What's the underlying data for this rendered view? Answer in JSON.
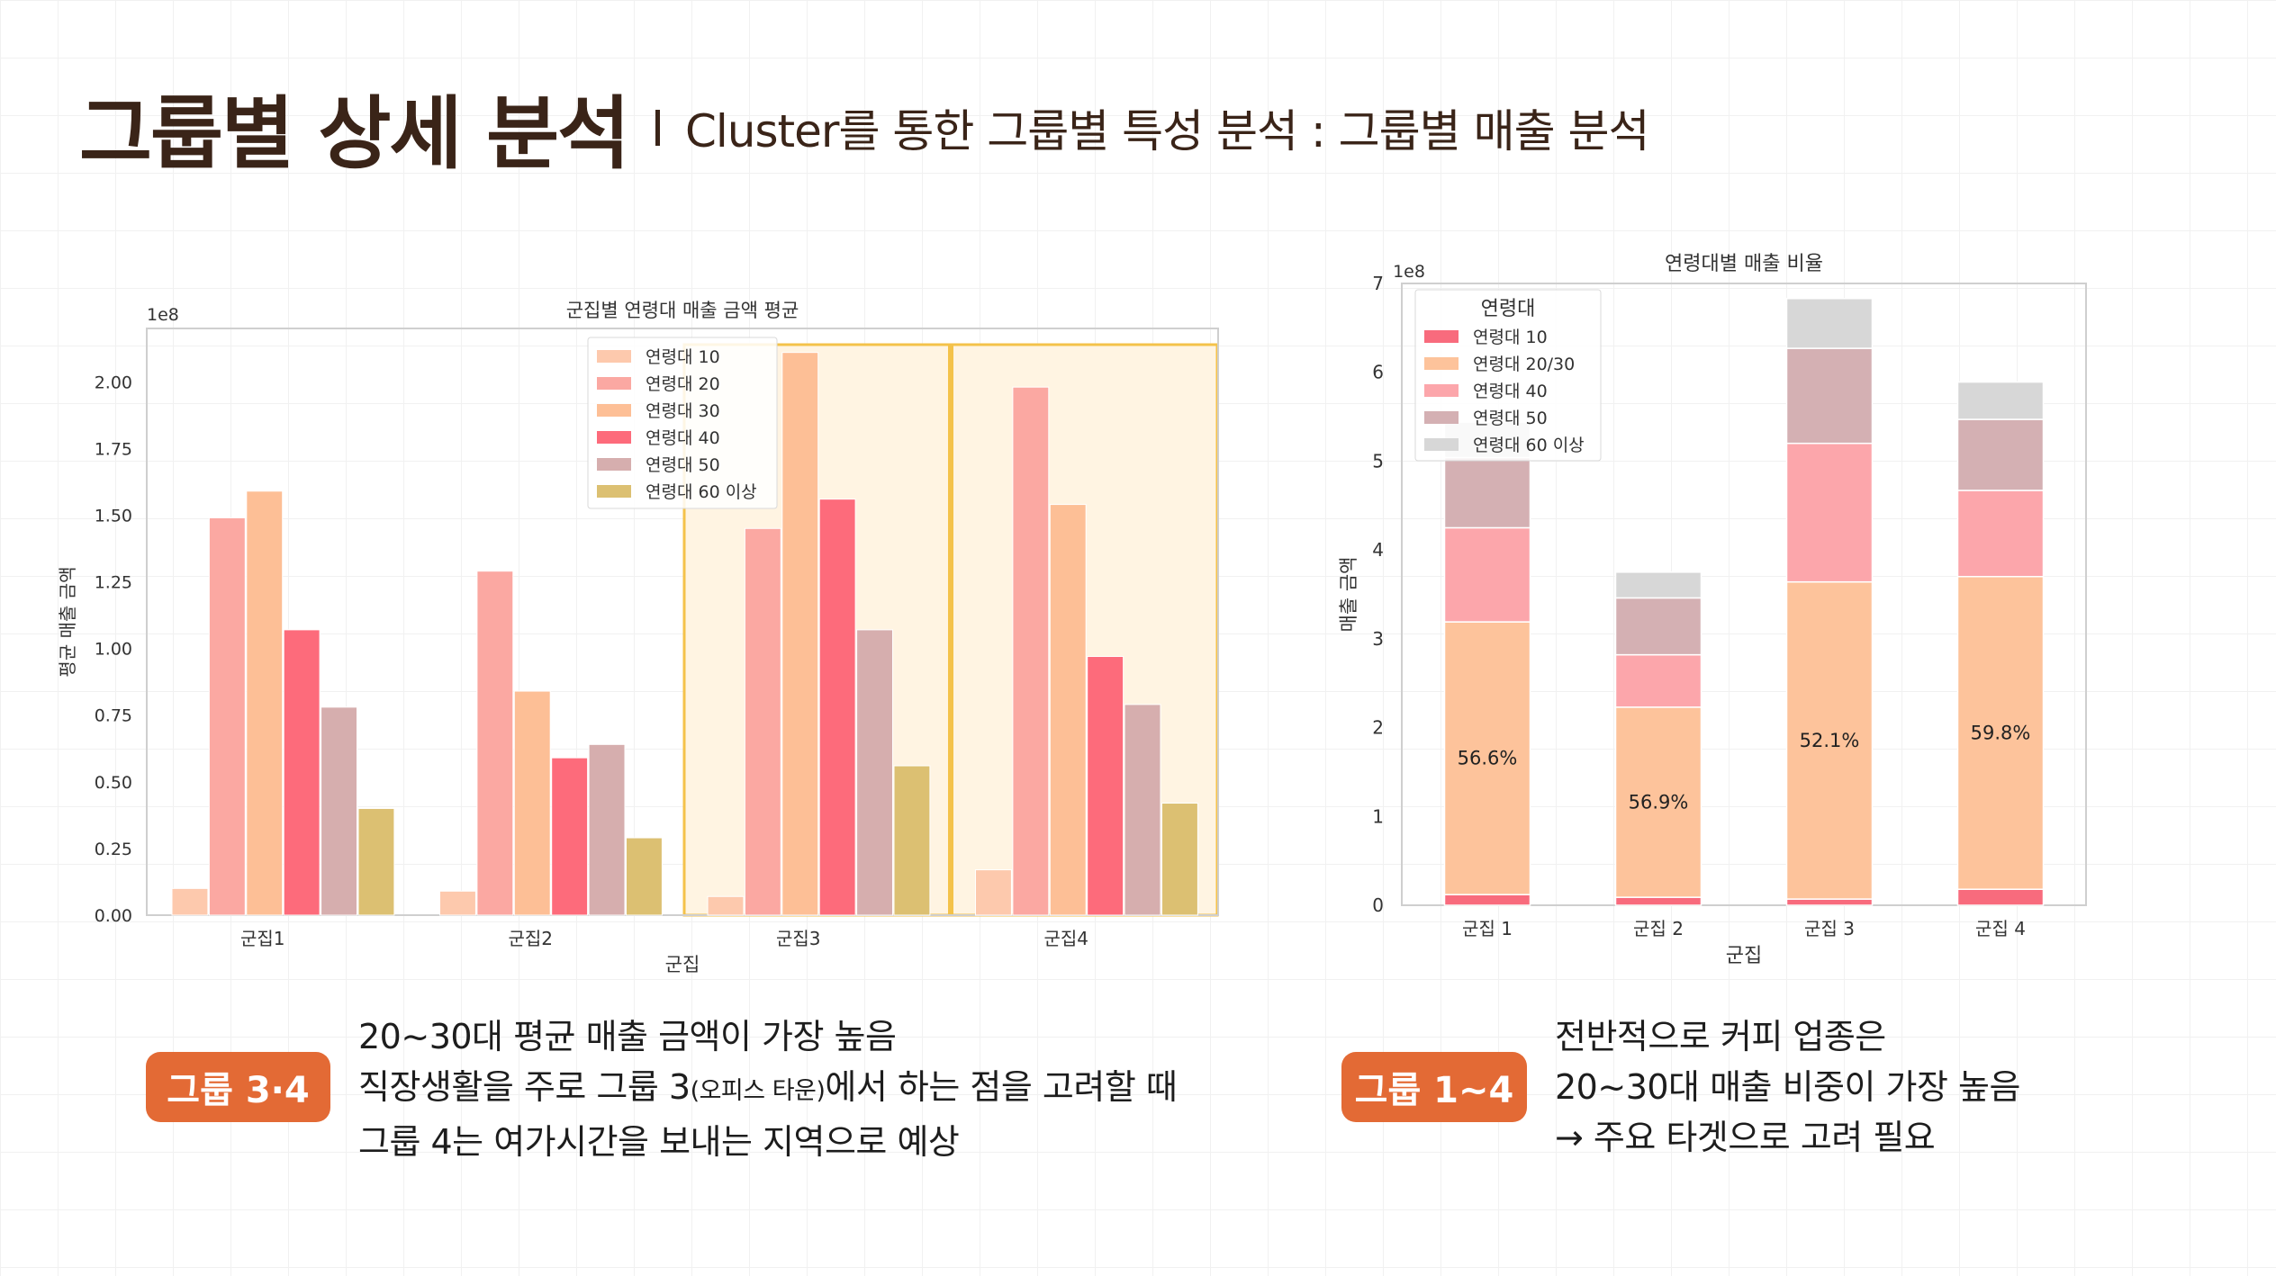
{
  "header": {
    "title": "그룹별 상세 분석",
    "subtitle": "Cluster를 통한 그룹별 특성 분석 : 그룹별 매출 분석"
  },
  "left_panel": {
    "badge": "그룹 3·4",
    "lines": [
      "20~30대 평균 매출 금액이 가장 높음",
      {
        "pre": "직장생활을 주로 그룹 3",
        "small": "(오피스 타운)",
        "post": "에서 하는 점을 고려할 때"
      },
      "그룹 4는 여가시간을 보내는 지역으로 예상"
    ]
  },
  "right_panel": {
    "badge": "그룹 1~4",
    "lines": [
      "전반적으로 커피 업종은",
      "20~30대 매출 비중이 가장 높음",
      "→ 주요 타겟으로 고려 필요"
    ]
  },
  "chart_data": [
    {
      "type": "bar",
      "title": "군집별 연령대 매출 금액 평균",
      "xlabel": "군집",
      "ylabel": "평균 매출 금액",
      "scale_label": "1e8",
      "categories": [
        "군집1",
        "군집2",
        "군집3",
        "군집4"
      ],
      "ylim": [
        0,
        2.2
      ],
      "yticks": [
        "0.00",
        "0.25",
        "0.50",
        "0.75",
        "1.00",
        "1.25",
        "1.50",
        "1.75",
        "2.00"
      ],
      "legend_position": "top-center",
      "highlighted_categories": [
        "군집3",
        "군집4"
      ],
      "highlight_color": "#f4c24a",
      "series": [
        {
          "name": "연령대 10",
          "color": "#fdc9ad",
          "values": [
            0.1,
            0.09,
            0.07,
            0.17
          ]
        },
        {
          "name": "연령대 20",
          "color": "#fba8a2",
          "values": [
            1.49,
            1.29,
            1.45,
            1.98
          ]
        },
        {
          "name": "연령대 30",
          "color": "#fdbf96",
          "values": [
            1.59,
            0.84,
            2.11,
            1.54
          ]
        },
        {
          "name": "연령대 40",
          "color": "#fd6b7b",
          "values": [
            1.07,
            0.59,
            1.56,
            0.97
          ]
        },
        {
          "name": "연령대 50",
          "color": "#d6aeae",
          "values": [
            0.78,
            0.64,
            1.07,
            0.79
          ]
        },
        {
          "name": "연령대 60 이상",
          "color": "#dcc072",
          "values": [
            0.4,
            0.29,
            0.56,
            0.42
          ]
        }
      ]
    },
    {
      "type": "bar",
      "stacked": true,
      "title": "연령대별 매출 비율",
      "xlabel": "군집",
      "ylabel": "매출 금액",
      "scale_label": "1e8",
      "categories": [
        "군집 1",
        "군집 2",
        "군집 3",
        "군집 4"
      ],
      "ylim": [
        0,
        7
      ],
      "yticks": [
        "0",
        "1",
        "2",
        "3",
        "4",
        "5",
        "6",
        "7"
      ],
      "legend_title": "연령대",
      "legend_position": "top-left",
      "series": [
        {
          "name": "연령대 10",
          "color": "#f86b7d",
          "values": [
            0.12,
            0.09,
            0.07,
            0.18
          ]
        },
        {
          "name": "연령대 20/30",
          "color": "#fdc39b",
          "values": [
            3.07,
            2.14,
            3.57,
            3.52
          ]
        },
        {
          "name": "연령대 40",
          "color": "#fca6ab",
          "values": [
            1.06,
            0.59,
            1.56,
            0.97
          ]
        },
        {
          "name": "연령대 50",
          "color": "#d4b0b3",
          "values": [
            0.79,
            0.64,
            1.07,
            0.8
          ]
        },
        {
          "name": "연령대 60 이상",
          "color": "#d7d7d7",
          "values": [
            0.4,
            0.29,
            0.56,
            0.42
          ]
        }
      ],
      "annotations": [
        "56.6%",
        "56.9%",
        "52.1%",
        "59.8%"
      ]
    }
  ]
}
